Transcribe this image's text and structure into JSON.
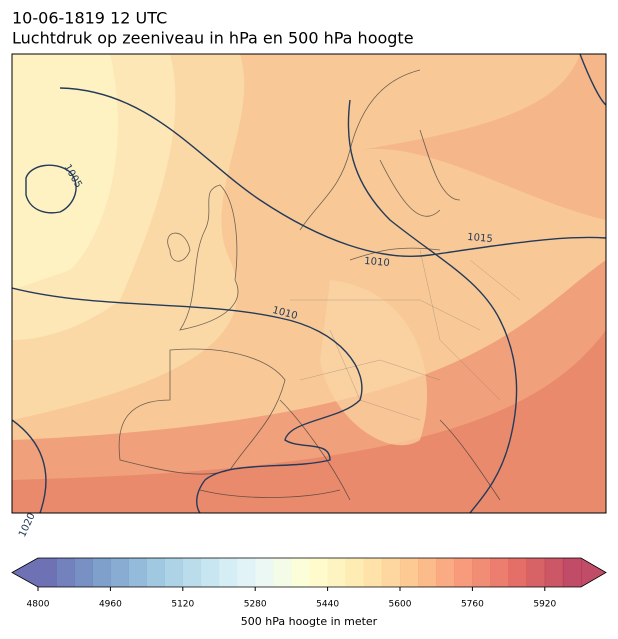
{
  "title": "10-06-1819 12 UTC",
  "subtitle": "Luchtdruk op zeeniveau in hPa en 500 hPa hoogte",
  "map": {
    "contour_labels": [
      1005,
      1010,
      1010,
      1015,
      1020
    ]
  },
  "colorbar": {
    "label": "500 hPa hoogte in meter",
    "levels": [
      4800,
      4840,
      4880,
      4920,
      4960,
      5000,
      5040,
      5080,
      5120,
      5160,
      5200,
      5240,
      5280,
      5320,
      5360,
      5400,
      5440,
      5480,
      5520,
      5560,
      5600,
      5640,
      5680,
      5720,
      5760,
      5800,
      5840,
      5880,
      5920,
      5960,
      6000
    ],
    "ticks": [
      4800,
      4960,
      5120,
      5280,
      5440,
      5600,
      5760,
      5920
    ],
    "colormap": "RdYlBu_r",
    "extend": "both"
  }
}
